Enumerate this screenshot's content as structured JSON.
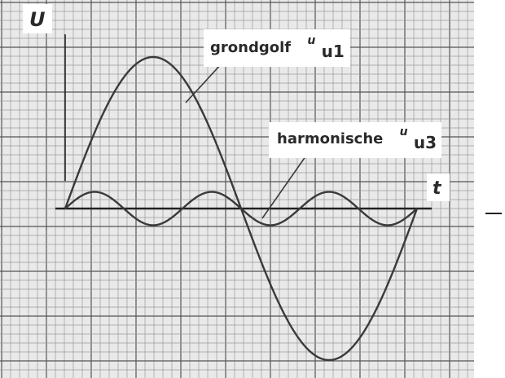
{
  "chart_data": {
    "type": "line",
    "ylabel": "U",
    "xlabel": "t",
    "x_range_periods": [
      0,
      1
    ],
    "ylim": [
      -1.15,
      1.15
    ],
    "grid": true,
    "series": [
      {
        "name": "grondgolf",
        "symbol": "u",
        "subscript": "u1",
        "harmonic": 1,
        "amplitude": 1.0
      },
      {
        "name": "harmonische",
        "symbol": "u",
        "subscript": "u3",
        "harmonic": 3,
        "amplitude": 0.11
      }
    ]
  },
  "colors": {
    "background": "#ffffff",
    "paper": "#e9e9e9",
    "grid_fine": "#9a9a9a",
    "grid_major": "#555555",
    "curve": "#3a3a3a",
    "axis": "#222222"
  }
}
